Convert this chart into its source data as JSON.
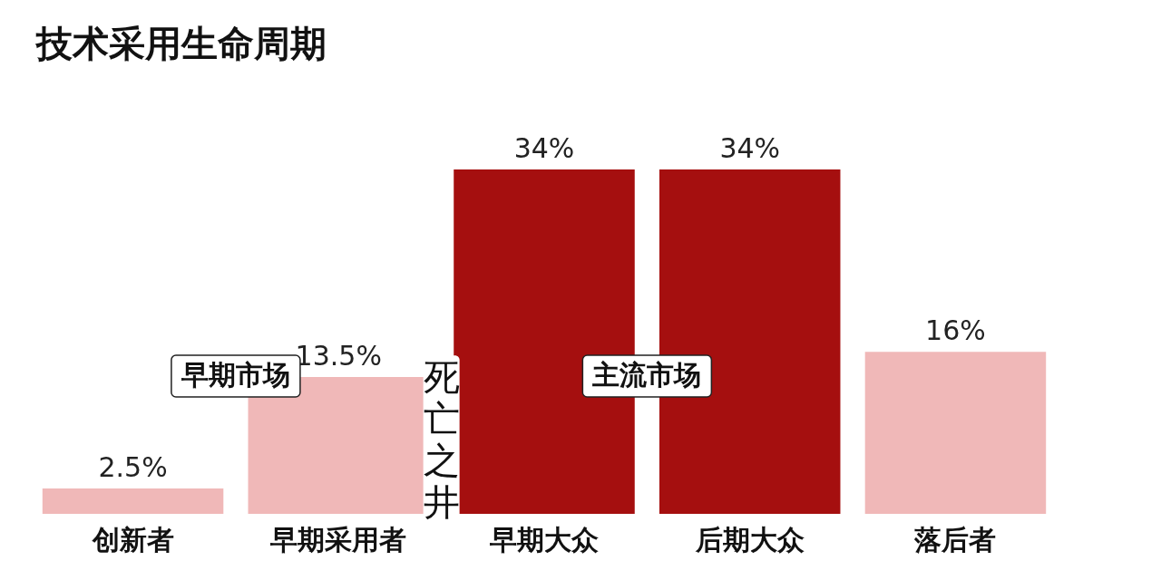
{
  "chart_data": {
    "type": "bar",
    "title": "技术采用生命周期",
    "categories": [
      "创新者",
      "早期采用者",
      "早期大众",
      "后期大众",
      "落后者"
    ],
    "values": [
      2.5,
      13.5,
      34,
      34,
      16
    ],
    "value_labels": [
      "2.5%",
      "13.5%",
      "34%",
      "34%",
      "16%"
    ],
    "colors": [
      "#f0b8b8",
      "#f0b8b8",
      "#a50f0f",
      "#a50f0f",
      "#f0b8b8"
    ],
    "tick_labels": "x",
    "grid": false,
    "annotations": [
      "早期市场",
      "死亡之井",
      "主流市场"
    ]
  }
}
